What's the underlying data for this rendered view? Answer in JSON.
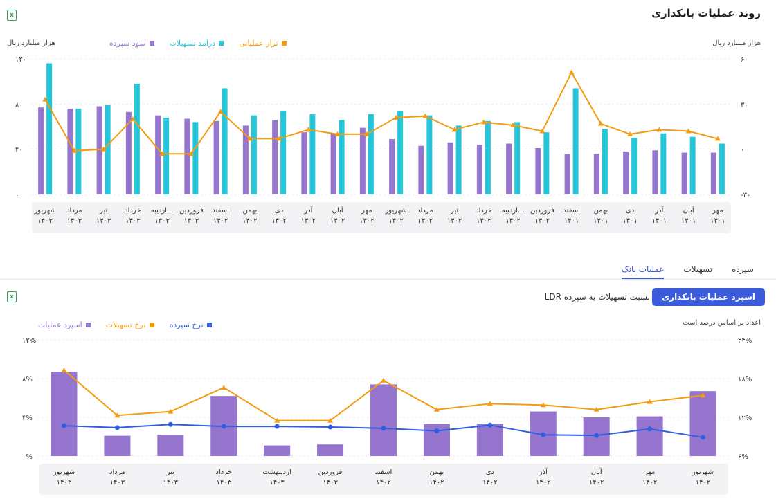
{
  "header": {
    "title": "روند عملیات بانکداری"
  },
  "chart1": {
    "unit_left": "هزار میلیارد ریال",
    "unit_right": "هزار میلیارد ریال",
    "legend": [
      "تراز عملیاتی",
      "درآمد تسهیلات",
      "سود سپرده"
    ]
  },
  "tabs": [
    "سپرده",
    "تسهیلات",
    "عملیات بانک"
  ],
  "buttons": {
    "spread": "اسپرد عملیات بانکداری",
    "ldr": "نسبت تسهیلات به سپرده LDR"
  },
  "chart2": {
    "unit": "اعداد بر اساس درصد است",
    "legend": [
      "اسپرد عملیات",
      "نرخ تسهیلات",
      "نرخ سپرده"
    ]
  },
  "colors": {
    "purple": "#9575cd",
    "cyan": "#26c6da",
    "orange": "#f39c12",
    "blue": "#2f5ee0",
    "accent": "#3b5bdb",
    "excel": "#2e9e5b"
  },
  "icons": [
    "excel-icon",
    "excel-icon"
  ],
  "chart_data": [
    {
      "type": "bar",
      "title": "روند عملیات بانکداری",
      "ylabel_left": "هزار میلیارد ریال",
      "ylabel_right": "هزار میلیارد ریال",
      "ylim_left": [
        0,
        120
      ],
      "ylim_right": [
        -30,
        60
      ],
      "yticks_left": [
        "۰",
        "۴۰",
        "۸۰",
        "۱۲۰"
      ],
      "yticks_right": [
        "-۳۰",
        "۰",
        "۳۰",
        "۶۰"
      ],
      "categories": [
        {
          "m": "مهر",
          "y": "۱۴۰۱"
        },
        {
          "m": "آبان",
          "y": "۱۴۰۱"
        },
        {
          "m": "آذر",
          "y": "۱۴۰۱"
        },
        {
          "m": "دی",
          "y": "۱۴۰۱"
        },
        {
          "m": "بهمن",
          "y": "۱۴۰۱"
        },
        {
          "m": "اسفند",
          "y": "۱۴۰۱"
        },
        {
          "m": "فروردین",
          "y": "۱۴۰۲"
        },
        {
          "m": "اردیبه...",
          "y": "۱۴۰۲"
        },
        {
          "m": "خرداد",
          "y": "۱۴۰۲"
        },
        {
          "m": "تیر",
          "y": "۱۴۰۲"
        },
        {
          "m": "مرداد",
          "y": "۱۴۰۲"
        },
        {
          "m": "شهریور",
          "y": "۱۴۰۲"
        },
        {
          "m": "مهر",
          "y": "۱۴۰۲"
        },
        {
          "m": "آبان",
          "y": "۱۴۰۲"
        },
        {
          "m": "آذر",
          "y": "۱۴۰۲"
        },
        {
          "m": "دی",
          "y": "۱۴۰۲"
        },
        {
          "m": "بهمن",
          "y": "۱۴۰۲"
        },
        {
          "m": "اسفند",
          "y": "۱۴۰۲"
        },
        {
          "m": "فروردین",
          "y": "۱۴۰۳"
        },
        {
          "m": "اردیبه...",
          "y": "۱۴۰۳"
        },
        {
          "m": "خرداد",
          "y": "۱۴۰۳"
        },
        {
          "m": "تیر",
          "y": "۱۴۰۳"
        },
        {
          "m": "مرداد",
          "y": "۱۴۰۳"
        },
        {
          "m": "شهریور",
          "y": "۱۴۰۳"
        }
      ],
      "series": [
        {
          "name": "سود سپرده",
          "type": "bar",
          "axis": "left",
          "color": "#9575cd",
          "values": [
            37,
            37,
            39,
            38,
            36,
            36,
            41,
            45,
            44,
            46,
            43,
            49,
            59,
            54,
            55,
            66,
            61,
            65,
            67,
            70,
            73,
            78,
            76,
            77
          ]
        },
        {
          "name": "درآمد تسهیلات",
          "type": "bar",
          "axis": "left",
          "color": "#26c6da",
          "values": [
            45,
            51,
            54,
            50,
            58,
            94,
            55,
            64,
            65,
            61,
            70,
            74,
            71,
            66,
            71,
            74,
            70,
            94,
            64,
            68,
            98,
            79,
            76,
            116
          ]
        },
        {
          "name": "تراز عملیاتی",
          "type": "line",
          "axis": "right",
          "color": "#f39c12",
          "values": [
            7,
            12,
            13,
            10,
            17,
            51,
            12,
            16,
            18,
            13,
            22,
            21,
            10,
            10,
            13,
            7,
            7,
            25,
            -3,
            -3,
            20,
            0,
            -1,
            33
          ]
        }
      ]
    },
    {
      "type": "bar",
      "ylabel": "اعداد بر اساس درصد است",
      "ylim_left": [
        0,
        12
      ],
      "ylim_right": [
        6,
        24
      ],
      "yticks_left": [
        "۰%",
        "۴%",
        "۸%",
        "۱۲%"
      ],
      "yticks_right": [
        "۶%",
        "۱۲%",
        "۱۸%",
        "۲۴%"
      ],
      "categories": [
        {
          "m": "شهریور",
          "y": "۱۴۰۲"
        },
        {
          "m": "مهر",
          "y": "۱۴۰۲"
        },
        {
          "m": "آبان",
          "y": "۱۴۰۲"
        },
        {
          "m": "آذر",
          "y": "۱۴۰۲"
        },
        {
          "m": "دی",
          "y": "۱۴۰۲"
        },
        {
          "m": "بهمن",
          "y": "۱۴۰۲"
        },
        {
          "m": "اسفند",
          "y": "۱۴۰۲"
        },
        {
          "m": "فروردین",
          "y": "۱۴۰۳"
        },
        {
          "m": "اردیبهشت",
          "y": "۱۴۰۳"
        },
        {
          "m": "خرداد",
          "y": "۱۴۰۳"
        },
        {
          "m": "تیر",
          "y": "۱۴۰۳"
        },
        {
          "m": "مرداد",
          "y": "۱۴۰۳"
        },
        {
          "m": "شهریور",
          "y": "۱۴۰۳"
        }
      ],
      "series": [
        {
          "name": "اسپرد عملیات",
          "type": "bar",
          "axis": "left",
          "color": "#9575cd",
          "values": [
            6.7,
            4.1,
            4.0,
            4.6,
            3.3,
            3.3,
            7.4,
            1.2,
            1.1,
            6.2,
            2.2,
            2.1,
            8.7
          ]
        },
        {
          "name": "نرخ تسهیلات",
          "type": "line",
          "axis": "right",
          "color": "#f39c12",
          "values": [
            15.4,
            14.4,
            13.2,
            13.9,
            14.1,
            13.2,
            17.7,
            11.5,
            11.5,
            16.6,
            12.9,
            12.3,
            19.3
          ]
        },
        {
          "name": "نرخ سپرده",
          "type": "line",
          "axis": "right",
          "color": "#2f5ee0",
          "values": [
            8.9,
            10.2,
            9.2,
            9.3,
            10.8,
            9.9,
            10.3,
            10.5,
            10.6,
            10.6,
            10.9,
            10.4,
            10.7
          ]
        }
      ]
    }
  ]
}
